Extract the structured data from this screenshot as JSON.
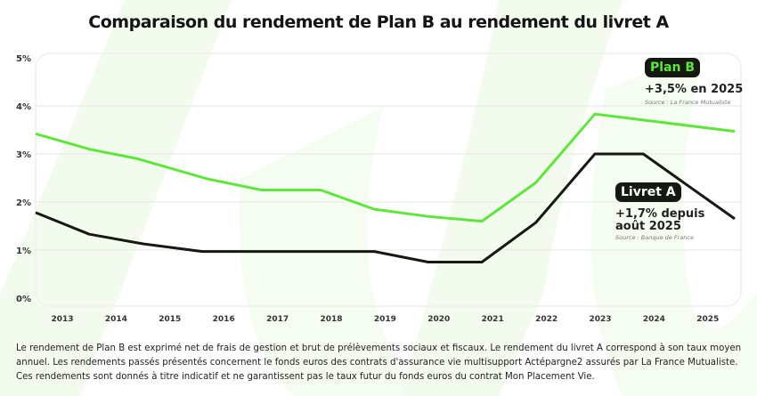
{
  "title": "Comparaison du rendement de Plan B au rendement du livret A",
  "chart_data": {
    "type": "line",
    "title": "Comparaison du rendement de Plan B au rendement du livret A",
    "categories": [
      "2013",
      "2014",
      "2015",
      "2016",
      "2017",
      "2018",
      "2019",
      "2020",
      "2021",
      "2022",
      "2023",
      "2024",
      "2025"
    ],
    "yticks": [
      "0%",
      "1%",
      "2%",
      "3%",
      "4%",
      "5%"
    ],
    "ylim": [
      0,
      5
    ],
    "grid": true,
    "series": [
      {
        "name": "Plan B",
        "color": "#5ee63a",
        "x": [
          2012.5,
          2013.5,
          2014.4,
          2015.7,
          2016.7,
          2017.8,
          2018.8,
          2019.8,
          2020.8,
          2021.8,
          2022.9,
          2025.5
        ],
        "values": [
          3.42,
          3.1,
          2.9,
          2.48,
          2.25,
          2.25,
          1.85,
          1.7,
          1.6,
          2.4,
          3.83,
          3.47
        ]
      },
      {
        "name": "Livret A",
        "color": "#141a12",
        "x": [
          2012.5,
          2013.5,
          2014.5,
          2015.6,
          2016.7,
          2017.8,
          2018.8,
          2019.8,
          2020.8,
          2021.8,
          2022.9,
          2023.8,
          2025.5
        ],
        "values": [
          1.78,
          1.33,
          1.13,
          0.97,
          0.97,
          0.97,
          0.97,
          0.75,
          0.75,
          1.57,
          3.0,
          3.0,
          1.65
        ]
      }
    ],
    "annotations": {
      "planb": {
        "badge": "Plan B",
        "text": "+3,5% en 2025",
        "source": "Source : La France Mutualiste"
      },
      "livret": {
        "badge": "Livret A",
        "text1": "+1,7% depuis",
        "text2": "août 2025",
        "source": "Source : Banque de France"
      }
    }
  },
  "footnote": "Le rendement de Plan B est exprimé net de frais de gestion et brut de prélèvements sociaux et fiscaux. Le rendement du livret A correspond à son taux moyen annuel. Les rendements passés présentés concernent le fonds euros des contrats d'assurance vie multisupport Actépargne2 assurés par La France Mutualiste. Ces rendements sont donnés à titre indicatif et ne garantissent pas le taux futur du fonds euros du contrat Mon Placement Vie."
}
